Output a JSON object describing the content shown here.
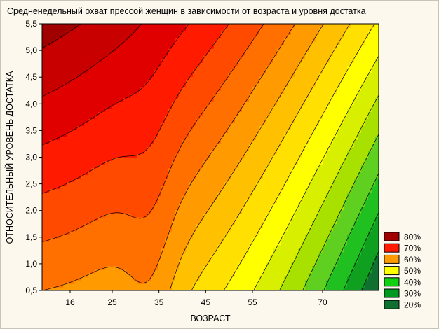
{
  "chart_data": {
    "type": "contour",
    "title": "Средненедельный охват прессой женщин в зависимости от возраста и уровня достатка",
    "xlabel": "ВОЗРАСТ",
    "ylabel": "ОТНОСИТЕЛЬНЫЙ УРОВЕНЬ ДОСТАТКА",
    "x_ticks": [
      16,
      25,
      35,
      45,
      55,
      70
    ],
    "x_tick_labels": [
      "16",
      "25",
      "35",
      "45",
      "55",
      "70"
    ],
    "y_ticks": [
      0.5,
      1.0,
      1.5,
      2.0,
      2.5,
      3.0,
      3.5,
      4.0,
      4.5,
      5.0,
      5.5
    ],
    "y_tick_labels": [
      "0,5",
      "1,0",
      "1,5",
      "2,0",
      "2,5",
      "3,0",
      "3,5",
      "4,0",
      "4,5",
      "5,0",
      "5,5"
    ],
    "xlim": [
      10,
      82
    ],
    "ylim": [
      0.5,
      5.5
    ],
    "legend": [
      {
        "label": "80%",
        "color": "#a00000"
      },
      {
        "label": "70%",
        "color": "#ff1a00"
      },
      {
        "label": "60%",
        "color": "#ff9a00"
      },
      {
        "label": "50%",
        "color": "#ffff00"
      },
      {
        "label": "40%",
        "color": "#10d010"
      },
      {
        "label": "30%",
        "color": "#009a20"
      },
      {
        "label": "20%",
        "color": "#107030"
      }
    ],
    "grid": false,
    "legend_position": "bottom-right"
  }
}
